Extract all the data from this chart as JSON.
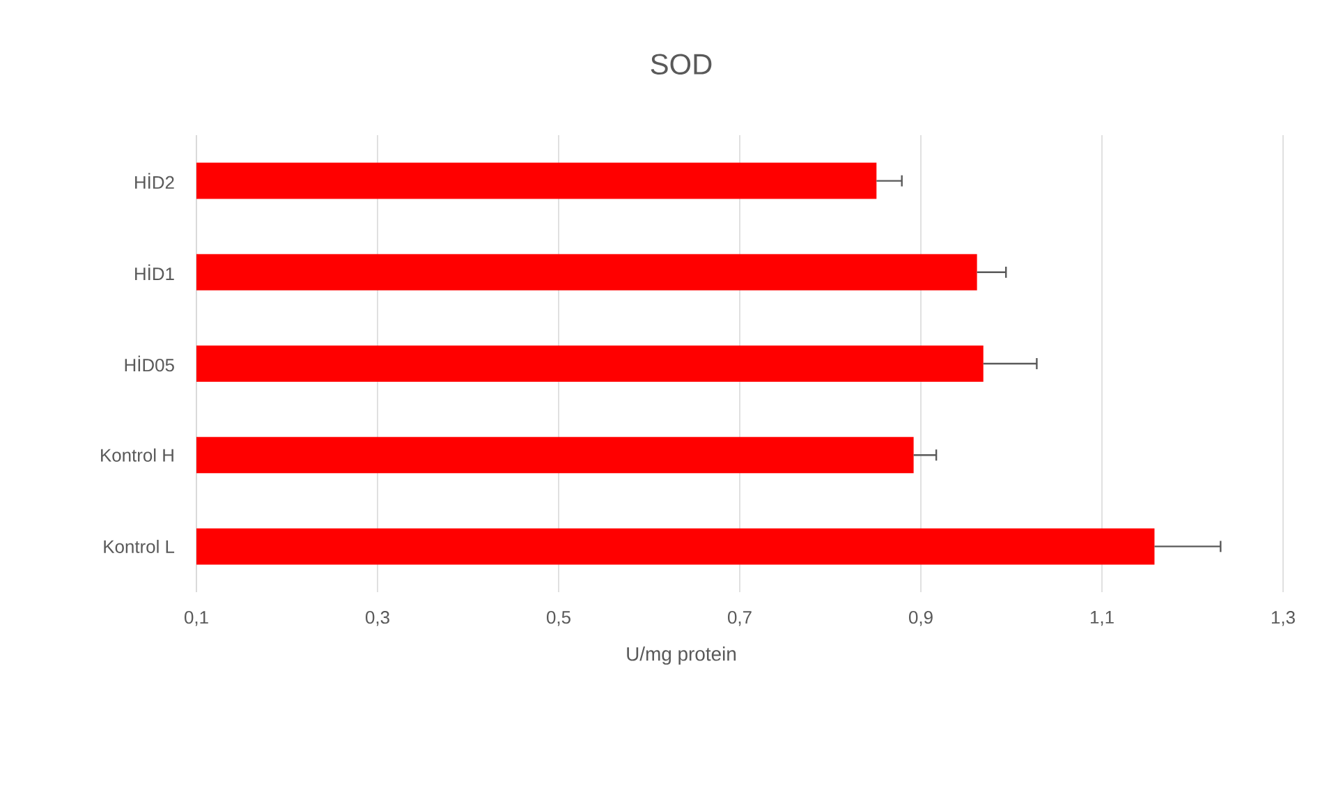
{
  "chart_data": {
    "type": "bar",
    "orientation": "horizontal",
    "title": "SOD",
    "xlabel": "U/mg protein",
    "categories": [
      "HİD2",
      "HİD1",
      "HİD05",
      "Kontrol H",
      "Kontrol L"
    ],
    "values": [
      0.851,
      0.962,
      0.969,
      0.892,
      1.158
    ],
    "errors": [
      0.028,
      0.032,
      0.059,
      0.025,
      0.073
    ],
    "color": "#ff0000",
    "xlim": [
      0.1,
      1.3
    ],
    "xticks": [
      {
        "value": 0.1,
        "label": "0,1"
      },
      {
        "value": 0.3,
        "label": "0,3"
      },
      {
        "value": 0.5,
        "label": "0,5"
      },
      {
        "value": 0.7,
        "label": "0,7"
      },
      {
        "value": 0.9,
        "label": "0,9"
      },
      {
        "value": 1.1,
        "label": "1,1"
      },
      {
        "value": 1.3,
        "label": "1,3"
      }
    ],
    "grid": "x"
  }
}
